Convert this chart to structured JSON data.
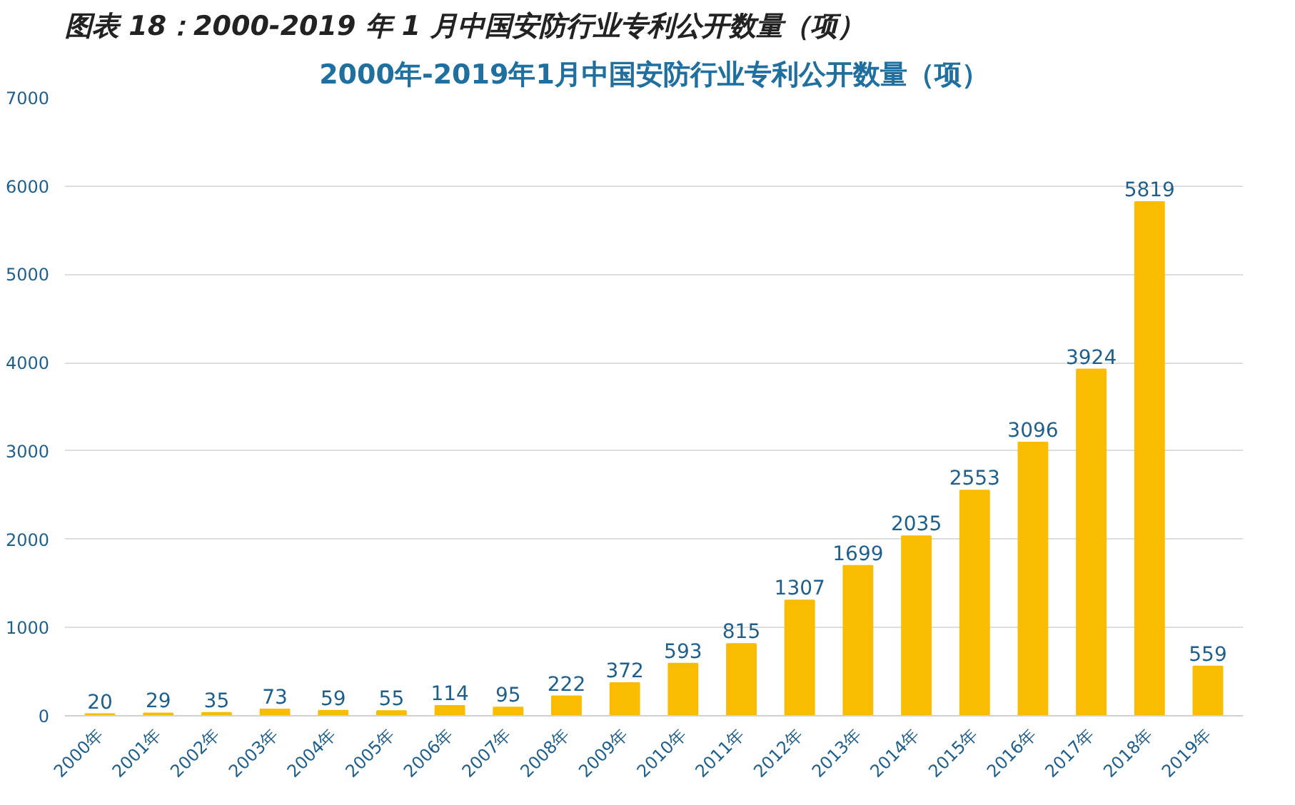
{
  "chart_data": {
    "type": "bar",
    "title": "图表 18：2000-2019 年 1 月中国安防行业专利公开数量（项）",
    "subtitle": "2000年-2019年1月中国安防行业专利公开数量（项）",
    "categories": [
      "2000年",
      "2001年",
      "2002年",
      "2003年",
      "2004年",
      "2005年",
      "2006年",
      "2007年",
      "2008年",
      "2009年",
      "2010年",
      "2011年",
      "2012年",
      "2013年",
      "2014年",
      "2015年",
      "2016年",
      "2017年",
      "2018年",
      "2019年"
    ],
    "values": [
      20,
      29,
      35,
      73,
      59,
      55,
      114,
      95,
      222,
      372,
      593,
      815,
      1307,
      1699,
      2035,
      2553,
      3096,
      3924,
      5819,
      559
    ],
    "color": "#f9bc00",
    "ylim": [
      0,
      7000
    ],
    "yticks": [
      0,
      1000,
      2000,
      3000,
      4000,
      5000,
      6000,
      7000
    ],
    "grid": "y",
    "data_labels": true
  }
}
